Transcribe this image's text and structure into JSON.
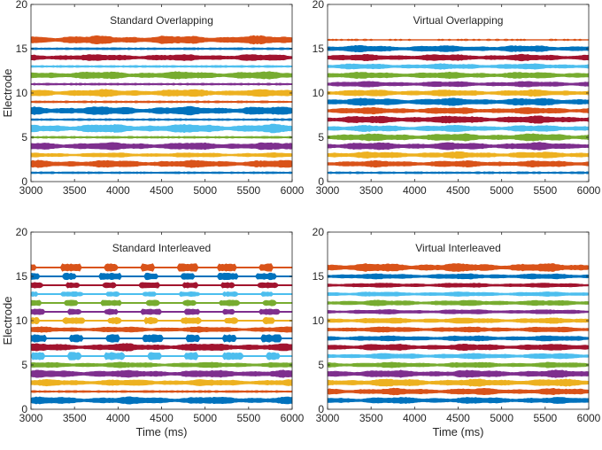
{
  "colors": {
    "blue": "#0072BD",
    "orange": "#D95319",
    "yellow": "#EDB120",
    "purple": "#7E2F8E",
    "green": "#77AC30",
    "cyan": "#4DBEEE",
    "red": "#A2142F",
    "axis": "#262626"
  },
  "electrode_color_cycle": [
    "blue",
    "orange",
    "yellow",
    "purple",
    "green",
    "cyan",
    "blue",
    "red",
    "orange",
    "yellow",
    "green",
    "purple",
    "cyan",
    "red",
    "blue",
    "orange"
  ],
  "chart_data": [
    {
      "type": "raster",
      "title": "Standard Overlapping",
      "xlabel": "",
      "ylabel": "Electrode",
      "xlim": [
        3000,
        6000
      ],
      "ylim": [
        0,
        20
      ],
      "xticks": [
        3000,
        3500,
        4000,
        4500,
        5000,
        5500,
        6000
      ],
      "yticks": [
        0,
        5,
        10,
        15,
        20
      ],
      "series": [
        {
          "electrode": 1,
          "color": "blue",
          "amplitude": 0.3,
          "pattern": "thin"
        },
        {
          "electrode": 2,
          "color": "orange",
          "amplitude": 0.8,
          "pattern": "continuous"
        },
        {
          "electrode": 3,
          "color": "yellow",
          "amplitude": 0.5,
          "pattern": "continuous"
        },
        {
          "electrode": 4,
          "color": "purple",
          "amplitude": 0.8,
          "pattern": "continuous"
        },
        {
          "electrode": 5,
          "color": "green",
          "amplitude": 0.3,
          "pattern": "thin"
        },
        {
          "electrode": 6,
          "color": "cyan",
          "amplitude": 0.9,
          "pattern": "continuous"
        },
        {
          "electrode": 7,
          "color": "blue",
          "amplitude": 0.2,
          "pattern": "thin"
        },
        {
          "electrode": 8,
          "color": "blue",
          "amplitude": 0.9,
          "pattern": "continuous"
        },
        {
          "electrode": 9,
          "color": "orange",
          "amplitude": 0.2,
          "pattern": "thin"
        },
        {
          "electrode": 10,
          "color": "yellow",
          "amplitude": 0.8,
          "pattern": "continuous"
        },
        {
          "electrode": 11,
          "color": "purple",
          "amplitude": 0.3,
          "pattern": "thin"
        },
        {
          "electrode": 12,
          "color": "green",
          "amplitude": 0.8,
          "pattern": "continuous"
        },
        {
          "electrode": 13,
          "color": "cyan",
          "amplitude": 0.3,
          "pattern": "thin"
        },
        {
          "electrode": 14,
          "color": "red",
          "amplitude": 0.7,
          "pattern": "continuous"
        },
        {
          "electrode": 15,
          "color": "blue",
          "amplitude": 0.2,
          "pattern": "thin"
        },
        {
          "electrode": 16,
          "color": "orange",
          "amplitude": 0.9,
          "pattern": "continuous"
        }
      ]
    },
    {
      "type": "raster",
      "title": "Virtual Overlapping",
      "xlabel": "",
      "ylabel": "",
      "xlim": [
        3000,
        6000
      ],
      "ylim": [
        0,
        20
      ],
      "xticks": [
        3000,
        3500,
        4000,
        4500,
        5000,
        5500,
        6000
      ],
      "yticks": [
        0,
        5,
        10,
        15,
        20
      ],
      "series": [
        {
          "electrode": 1,
          "color": "blue",
          "amplitude": 0.3,
          "pattern": "thin"
        },
        {
          "electrode": 2,
          "color": "orange",
          "amplitude": 0.7,
          "pattern": "continuous"
        },
        {
          "electrode": 3,
          "color": "yellow",
          "amplitude": 0.7,
          "pattern": "continuous"
        },
        {
          "electrode": 4,
          "color": "purple",
          "amplitude": 0.8,
          "pattern": "continuous"
        },
        {
          "electrode": 5,
          "color": "green",
          "amplitude": 0.8,
          "pattern": "continuous"
        },
        {
          "electrode": 6,
          "color": "cyan",
          "amplitude": 0.7,
          "pattern": "continuous"
        },
        {
          "electrode": 7,
          "color": "red",
          "amplitude": 0.8,
          "pattern": "continuous"
        },
        {
          "electrode": 8,
          "color": "orange",
          "amplitude": 0.7,
          "pattern": "continuous"
        },
        {
          "electrode": 9,
          "color": "blue",
          "amplitude": 0.8,
          "pattern": "continuous"
        },
        {
          "electrode": 10,
          "color": "yellow",
          "amplitude": 0.7,
          "pattern": "continuous"
        },
        {
          "electrode": 11,
          "color": "purple",
          "amplitude": 0.6,
          "pattern": "continuous"
        },
        {
          "electrode": 12,
          "color": "green",
          "amplitude": 0.7,
          "pattern": "continuous"
        },
        {
          "electrode": 13,
          "color": "cyan",
          "amplitude": 0.6,
          "pattern": "continuous"
        },
        {
          "electrode": 14,
          "color": "red",
          "amplitude": 0.7,
          "pattern": "continuous"
        },
        {
          "electrode": 15,
          "color": "blue",
          "amplitude": 0.7,
          "pattern": "continuous"
        },
        {
          "electrode": 16,
          "color": "orange",
          "amplitude": 0.15,
          "pattern": "sparse"
        }
      ]
    },
    {
      "type": "raster",
      "title": "Standard Interleaved",
      "xlabel": "Time (ms)",
      "ylabel": "Electrode",
      "xlim": [
        3000,
        6000
      ],
      "ylim": [
        0,
        20
      ],
      "xticks": [
        3000,
        3500,
        4000,
        4500,
        5000,
        5500,
        6000
      ],
      "yticks": [
        0,
        5,
        10,
        15,
        20
      ],
      "series": [
        {
          "electrode": 1,
          "color": "blue",
          "amplitude": 0.8,
          "pattern": "continuous"
        },
        {
          "electrode": 2,
          "color": "orange",
          "amplitude": 0.3,
          "pattern": "thin"
        },
        {
          "electrode": 3,
          "color": "yellow",
          "amplitude": 0.7,
          "pattern": "continuous"
        },
        {
          "electrode": 4,
          "color": "purple",
          "amplitude": 0.8,
          "pattern": "continuous"
        },
        {
          "electrode": 5,
          "color": "green",
          "amplitude": 0.6,
          "pattern": "continuous"
        },
        {
          "electrode": 6,
          "color": "cyan",
          "amplitude": 0.8,
          "pattern": "bursts"
        },
        {
          "electrode": 7,
          "color": "red",
          "amplitude": 0.8,
          "pattern": "continuous"
        },
        {
          "electrode": 8,
          "color": "blue",
          "amplitude": 0.8,
          "pattern": "bursts"
        },
        {
          "electrode": 9,
          "color": "orange",
          "amplitude": 0.6,
          "pattern": "continuous"
        },
        {
          "electrode": 10,
          "color": "yellow",
          "amplitude": 0.7,
          "pattern": "bursts"
        },
        {
          "electrode": 11,
          "color": "purple",
          "amplitude": 0.6,
          "pattern": "bursts"
        },
        {
          "electrode": 12,
          "color": "green",
          "amplitude": 0.6,
          "pattern": "bursts"
        },
        {
          "electrode": 13,
          "color": "cyan",
          "amplitude": 0.5,
          "pattern": "bursts"
        },
        {
          "electrode": 14,
          "color": "red",
          "amplitude": 0.6,
          "pattern": "bursts"
        },
        {
          "electrode": 15,
          "color": "blue",
          "amplitude": 0.7,
          "pattern": "bursts"
        },
        {
          "electrode": 16,
          "color": "orange",
          "amplitude": 0.8,
          "pattern": "bursts"
        }
      ]
    },
    {
      "type": "raster",
      "title": "Virtual Interleaved",
      "xlabel": "Time (ms)",
      "ylabel": "",
      "xlim": [
        3000,
        6000
      ],
      "ylim": [
        0,
        20
      ],
      "xticks": [
        3000,
        3500,
        4000,
        4500,
        5000,
        5500,
        6000
      ],
      "yticks": [
        0,
        5,
        10,
        15,
        20
      ],
      "series": [
        {
          "electrode": 1,
          "color": "blue",
          "amplitude": 0.7,
          "pattern": "continuous"
        },
        {
          "electrode": 2,
          "color": "orange",
          "amplitude": 0.7,
          "pattern": "continuous"
        },
        {
          "electrode": 3,
          "color": "yellow",
          "amplitude": 0.8,
          "pattern": "continuous"
        },
        {
          "electrode": 4,
          "color": "purple",
          "amplitude": 0.8,
          "pattern": "continuous"
        },
        {
          "electrode": 5,
          "color": "green",
          "amplitude": 0.6,
          "pattern": "continuous"
        },
        {
          "electrode": 6,
          "color": "cyan",
          "amplitude": 0.6,
          "pattern": "continuous"
        },
        {
          "electrode": 7,
          "color": "red",
          "amplitude": 0.7,
          "pattern": "continuous"
        },
        {
          "electrode": 8,
          "color": "blue",
          "amplitude": 0.6,
          "pattern": "continuous"
        },
        {
          "electrode": 9,
          "color": "orange",
          "amplitude": 0.6,
          "pattern": "continuous"
        },
        {
          "electrode": 10,
          "color": "yellow",
          "amplitude": 0.6,
          "pattern": "continuous"
        },
        {
          "electrode": 11,
          "color": "purple",
          "amplitude": 0.5,
          "pattern": "continuous"
        },
        {
          "electrode": 12,
          "color": "green",
          "amplitude": 0.6,
          "pattern": "continuous"
        },
        {
          "electrode": 13,
          "color": "cyan",
          "amplitude": 0.5,
          "pattern": "continuous"
        },
        {
          "electrode": 14,
          "color": "red",
          "amplitude": 0.5,
          "pattern": "continuous"
        },
        {
          "electrode": 15,
          "color": "blue",
          "amplitude": 0.6,
          "pattern": "continuous"
        },
        {
          "electrode": 16,
          "color": "orange",
          "amplitude": 0.9,
          "pattern": "continuous"
        }
      ]
    }
  ]
}
